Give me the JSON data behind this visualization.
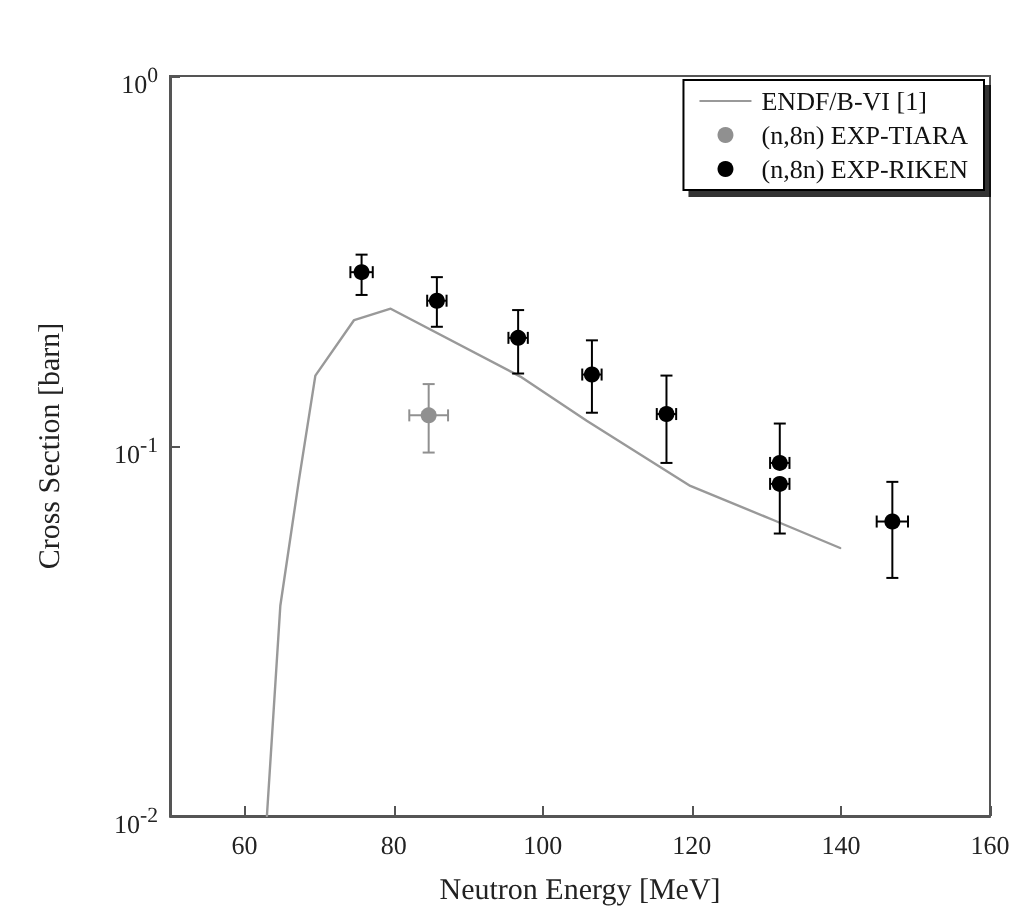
{
  "chart_data": {
    "type": "scatter",
    "xlabel": "Neutron Energy [MeV]",
    "ylabel": "Cross Section [barn]",
    "xlim": [
      50,
      160
    ],
    "xticks": [
      60,
      80,
      100,
      120,
      140,
      160
    ],
    "ylim": [
      0.01,
      1
    ],
    "yticks": [
      {
        "value": 0.01,
        "label": "10$^{-2}$"
      },
      {
        "value": 0.1,
        "label": "10$^{-1}$"
      },
      {
        "value": 1,
        "label": "10$^{0}$"
      }
    ],
    "log": "y",
    "grid": false,
    "legend": "top right",
    "series": [
      {
        "name": "ENDF/B-VI [1]",
        "type": "line",
        "color": "#999999",
        "marker": "none",
        "line_style": "solid",
        "x": [
          63.0,
          64.8,
          67.3,
          69.5,
          74.7,
          79.6,
          97,
          105.9,
          119.8,
          131,
          139.9
        ],
        "values": [
          0.01,
          0.037,
          0.081,
          0.155,
          0.219,
          0.235,
          0.154,
          0.117,
          0.078,
          0.063,
          0.053
        ]
      },
      {
        "name": "(n,8n) EXP-TIARA",
        "color": "#909090",
        "marker": "circle",
        "x": [
          84.7
        ],
        "values": [
          0.121
        ],
        "errors": [
          [
            0.096,
            0.147
          ]
        ],
        "xerrors": [
          2.6
        ]
      },
      {
        "name": "(n,8n) EXP-RIKEN",
        "color": "#000000",
        "marker": "circle",
        "x": [
          75.7,
          85.8,
          96.7,
          106.6,
          116.6,
          131.8,
          131.8,
          146.9
        ],
        "values": [
          0.295,
          0.247,
          0.196,
          0.156,
          0.122,
          0.09,
          0.079,
          0.0625
        ],
        "errors": [
          [
            0.256,
            0.329
          ],
          [
            0.21,
            0.286
          ],
          [
            0.157,
            0.233
          ],
          [
            0.123,
            0.193
          ],
          [
            0.09,
            0.155
          ],
          [
            0.09,
            0.115
          ],
          [
            0.058,
            0.079
          ],
          [
            0.044,
            0.08
          ]
        ],
        "xerrors": [
          1.5,
          1.3,
          1.3,
          1.3,
          1.3,
          1.3,
          1.3,
          2.1
        ]
      }
    ]
  }
}
